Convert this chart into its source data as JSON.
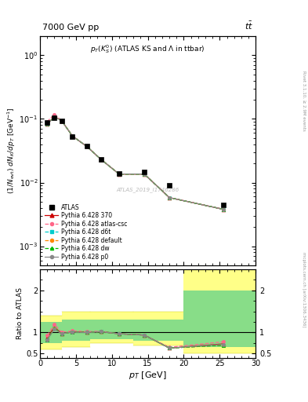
{
  "title_top": "7000 GeV pp",
  "title_top_right": "t#bar{t}",
  "plot_title": "p_{T}(K^{0}_{S}) (ATLAS KS and #Lambda in ttbar)",
  "xlabel": "p_{T} [GeV]",
  "ylabel_main": "(1/N_{evt}) dN_{K}/dp_{T} [GeV^{-1}]",
  "ylabel_ratio": "Ratio to ATLAS",
  "watermark": "ATLAS_2019_I1746286",
  "atlas_pt": [
    1.0,
    2.0,
    3.0,
    4.5,
    6.5,
    8.5,
    11.0,
    14.5,
    18.0,
    25.5
  ],
  "atlas_y": [
    0.087,
    0.103,
    0.094,
    0.053,
    0.037,
    0.023,
    0.014,
    0.0145,
    0.0091,
    0.0045
  ],
  "pythia370_y": [
    0.082,
    0.11,
    0.094,
    0.054,
    0.037,
    0.023,
    0.0136,
    0.0136,
    0.0058,
    0.0038
  ],
  "pythia_atlascsc_y": [
    0.091,
    0.118,
    0.094,
    0.054,
    0.037,
    0.023,
    0.0136,
    0.0136,
    0.0058,
    0.0038
  ],
  "pythia_d6t_y": [
    0.082,
    0.108,
    0.094,
    0.054,
    0.037,
    0.023,
    0.0136,
    0.0136,
    0.0058,
    0.0038
  ],
  "pythia_default_y": [
    0.082,
    0.108,
    0.094,
    0.054,
    0.037,
    0.023,
    0.0136,
    0.0136,
    0.0058,
    0.0038
  ],
  "pythia_dw_y": [
    0.082,
    0.108,
    0.094,
    0.054,
    0.037,
    0.023,
    0.0136,
    0.0136,
    0.0058,
    0.0038
  ],
  "pythia_p0_y": [
    0.082,
    0.108,
    0.094,
    0.054,
    0.037,
    0.023,
    0.0136,
    0.0136,
    0.0058,
    0.0038
  ],
  "ratio370": [
    0.87,
    1.13,
    0.97,
    1.02,
    1.01,
    1.02,
    0.97,
    0.94,
    0.63,
    0.73
  ],
  "ratio_atlascsc": [
    0.93,
    1.2,
    1.0,
    1.04,
    1.02,
    1.03,
    0.97,
    0.94,
    0.65,
    0.78
  ],
  "ratio_d6t": [
    0.83,
    1.1,
    0.97,
    1.01,
    1.0,
    1.02,
    0.97,
    0.94,
    0.63,
    0.7
  ],
  "ratio_default": [
    0.83,
    1.1,
    0.97,
    1.01,
    1.0,
    1.02,
    0.97,
    0.94,
    0.63,
    0.7
  ],
  "ratio_dw": [
    0.83,
    1.1,
    0.97,
    1.01,
    1.0,
    1.02,
    0.97,
    0.94,
    0.63,
    0.7
  ],
  "ratio_p0": [
    0.83,
    1.08,
    0.97,
    1.01,
    1.0,
    1.02,
    0.97,
    0.94,
    0.63,
    0.72
  ],
  "band_edges": [
    0.0,
    3.0,
    7.0,
    13.0,
    20.0,
    30.0
  ],
  "band_yellow_lo": [
    0.6,
    0.65,
    0.75,
    0.7,
    0.5
  ],
  "band_yellow_hi": [
    1.4,
    1.5,
    1.5,
    1.5,
    2.5
  ],
  "band_green_lo": [
    0.75,
    0.8,
    0.85,
    0.8,
    0.65
  ],
  "band_green_hi": [
    1.25,
    1.3,
    1.3,
    1.3,
    2.0
  ],
  "color_370": "#cc0000",
  "color_atlascsc": "#ff6688",
  "color_d6t": "#00cccc",
  "color_default": "#ff8800",
  "color_dw": "#00bb00",
  "color_p0": "#888888",
  "ylim_main": [
    0.0005,
    2.0
  ],
  "ylim_ratio": [
    0.4,
    2.5
  ],
  "xlim": [
    0,
    30
  ]
}
